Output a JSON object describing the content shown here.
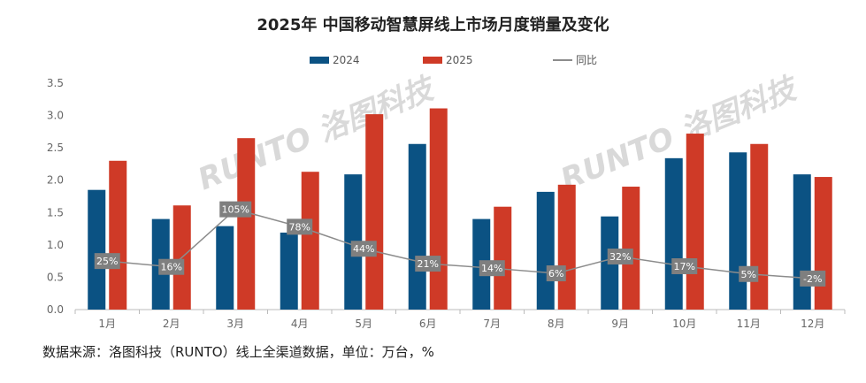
{
  "chart_data": {
    "type": "bar",
    "title": "2025年 中国移动智慧屏线上市场月度销量及变化",
    "categories": [
      "1月",
      "2月",
      "3月",
      "4月",
      "5月",
      "6月",
      "7月",
      "8月",
      "9月",
      "10月",
      "11月",
      "12月"
    ],
    "series": [
      {
        "name": "2024",
        "type": "bar",
        "color": "#0b5283",
        "values": [
          1.85,
          1.4,
          1.29,
          1.19,
          2.09,
          2.56,
          1.4,
          1.82,
          1.44,
          2.34,
          2.43,
          2.09
        ]
      },
      {
        "name": "2025",
        "type": "bar",
        "color": "#cf3a27",
        "values": [
          2.3,
          1.61,
          2.65,
          2.13,
          3.02,
          3.11,
          1.59,
          1.93,
          1.9,
          2.72,
          2.56,
          2.05
        ]
      },
      {
        "name": "同比",
        "type": "line",
        "color": "#8c8c8c",
        "axis": "secondary",
        "values": [
          25,
          16,
          105,
          78,
          44,
          21,
          14,
          6,
          32,
          17,
          5,
          -2
        ],
        "labels": [
          "25%",
          "16%",
          "105%",
          "78%",
          "44%",
          "21%",
          "14%",
          "6%",
          "32%",
          "17%",
          "5%",
          "-2%"
        ]
      }
    ],
    "yticks": [
      "0.0",
      "0.5",
      "1.0",
      "1.5",
      "2.0",
      "2.5",
      "3.0",
      "3.5"
    ],
    "ylim": [
      0,
      3.5
    ],
    "y2lim": [
      -50,
      300
    ],
    "legend_position": "top-center",
    "grid": false
  },
  "watermark": "RUNTO 洛图科技",
  "source": "数据来源：洛图科技（RUNTO）线上全渠道数据，单位：万台，%"
}
